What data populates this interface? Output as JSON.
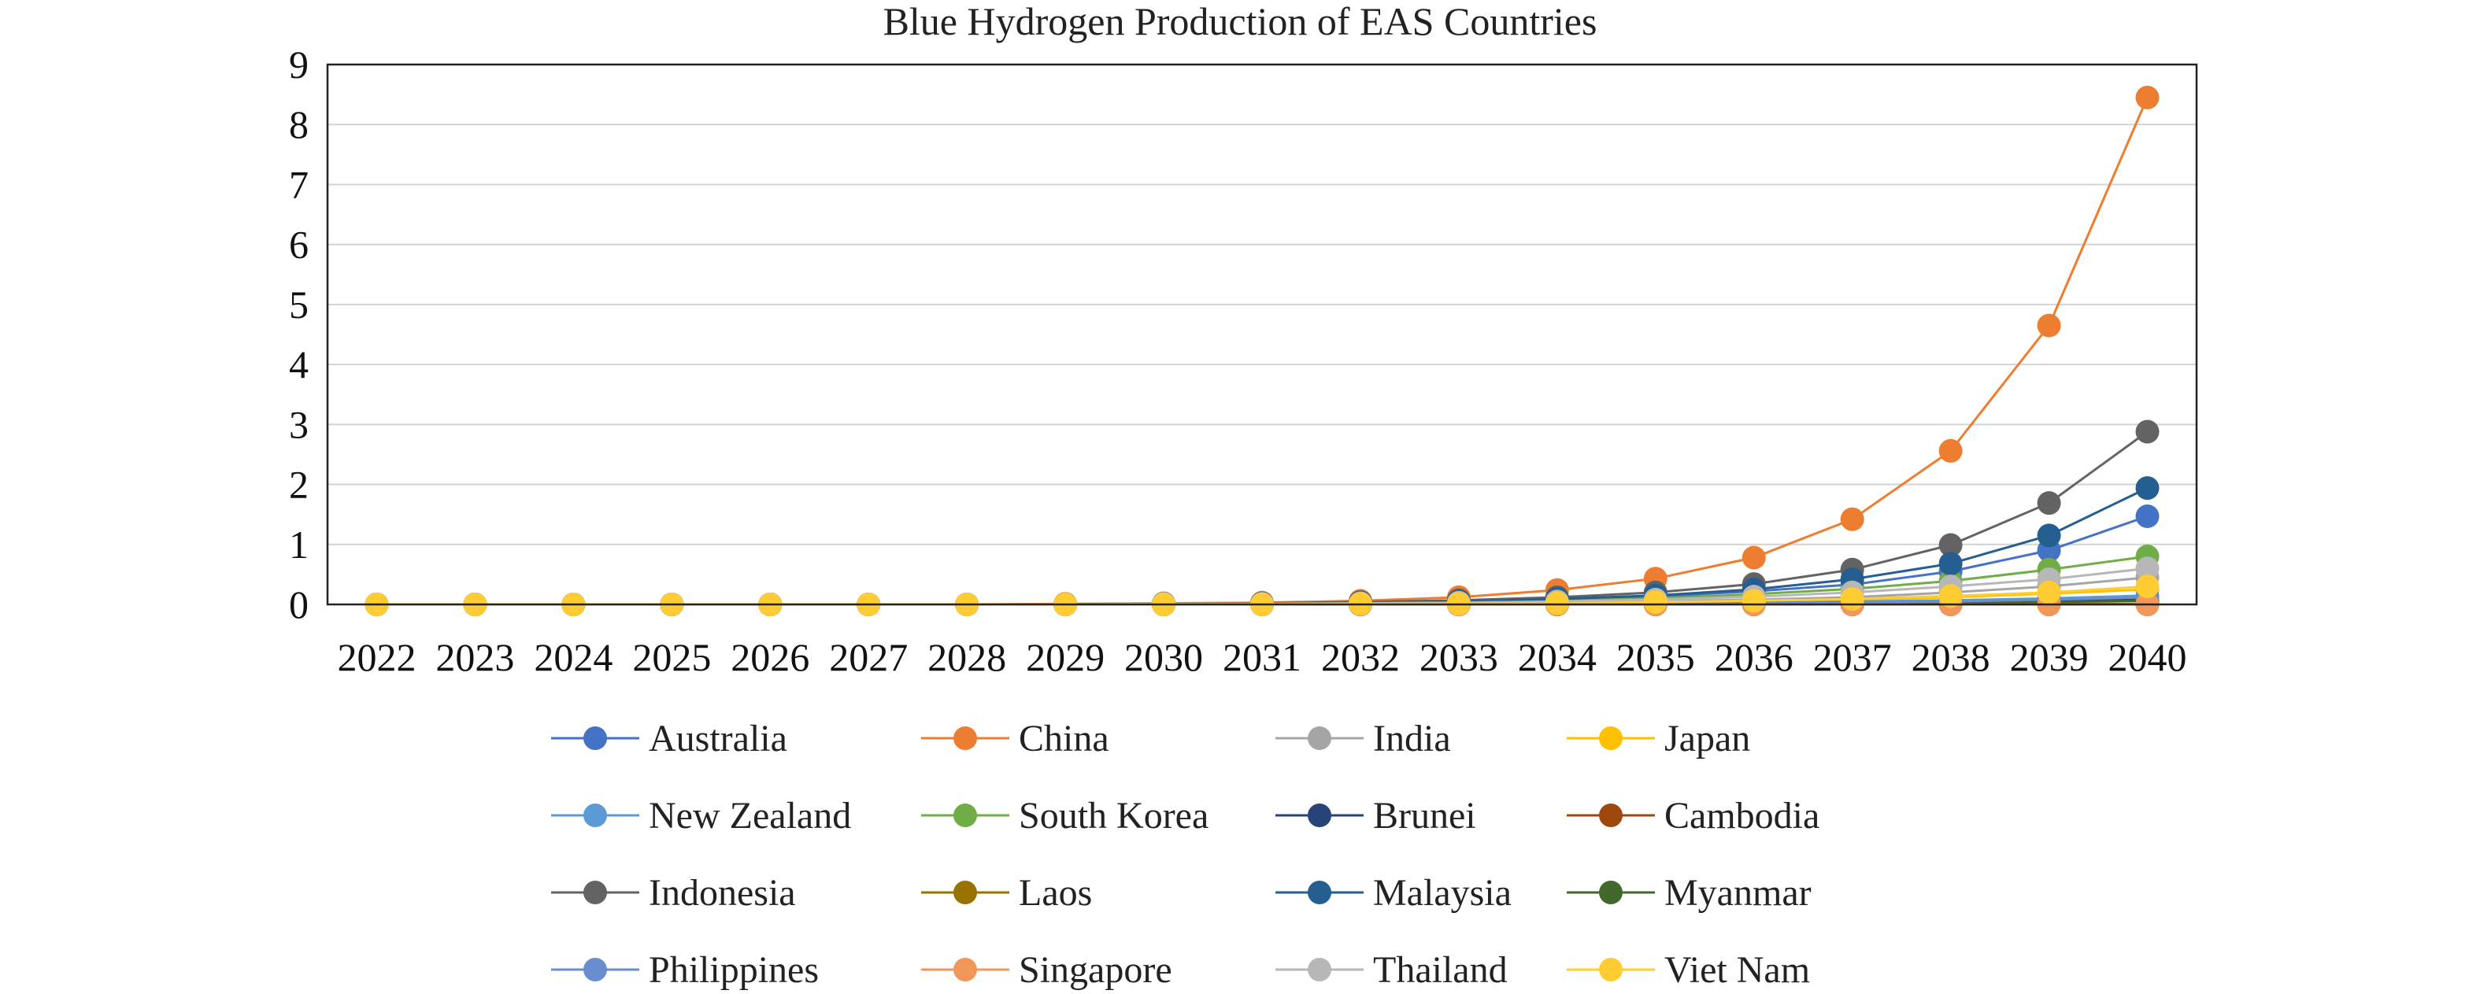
{
  "chart_data": {
    "type": "line",
    "title": "Blue Hydrogen Production of EAS Countries",
    "xlabel": "",
    "ylabel": "",
    "ylim": [
      0,
      9
    ],
    "yticks": [
      "0",
      "1",
      "2",
      "3",
      "4",
      "5",
      "6",
      "7",
      "8",
      "9"
    ],
    "grid": true,
    "legend_position": "bottom",
    "categories": [
      "2022",
      "2023",
      "2024",
      "2025",
      "2026",
      "2027",
      "2028",
      "2029",
      "2030",
      "2031",
      "2032",
      "2033",
      "2034",
      "2035",
      "2036",
      "2037",
      "2038",
      "2039",
      "2040"
    ],
    "series": [
      {
        "name": "Australia",
        "color": "#4472C4",
        "values": [
          0,
          0,
          0,
          0,
          0,
          0,
          0,
          0,
          0.01,
          0.02,
          0.03,
          0.05,
          0.08,
          0.13,
          0.22,
          0.33,
          0.55,
          0.9,
          1.47
        ]
      },
      {
        "name": "China",
        "color": "#ED7D31",
        "values": [
          0,
          0,
          0,
          0,
          0,
          0,
          0,
          0.01,
          0.02,
          0.03,
          0.06,
          0.12,
          0.24,
          0.43,
          0.78,
          1.42,
          2.56,
          4.65,
          8.45
        ]
      },
      {
        "name": "India",
        "color": "#A5A5A5",
        "values": [
          0,
          0,
          0,
          0,
          0,
          0,
          0,
          0,
          0,
          0.01,
          0.01,
          0.02,
          0.03,
          0.05,
          0.08,
          0.12,
          0.2,
          0.3,
          0.45
        ]
      },
      {
        "name": "Japan",
        "color": "#FFC000",
        "values": [
          0,
          0,
          0,
          0,
          0,
          0,
          0,
          0,
          0,
          0,
          0.01,
          0.01,
          0.02,
          0.03,
          0.05,
          0.08,
          0.12,
          0.18,
          0.25
        ]
      },
      {
        "name": "New Zealand",
        "color": "#5B9BD5",
        "values": [
          0,
          0,
          0,
          0,
          0,
          0,
          0,
          0,
          0,
          0,
          0,
          0.01,
          0.01,
          0.02,
          0.03,
          0.05,
          0.07,
          0.1,
          0.15
        ]
      },
      {
        "name": "South Korea",
        "color": "#70AD47",
        "values": [
          0,
          0,
          0,
          0,
          0,
          0,
          0,
          0,
          0.01,
          0.01,
          0.02,
          0.04,
          0.06,
          0.1,
          0.17,
          0.26,
          0.39,
          0.58,
          0.8
        ]
      },
      {
        "name": "Brunei",
        "color": "#264478",
        "values": [
          0,
          0,
          0,
          0,
          0,
          0,
          0,
          0,
          0,
          0,
          0,
          0,
          0.01,
          0.01,
          0.02,
          0.03,
          0.04,
          0.06,
          0.08
        ]
      },
      {
        "name": "Cambodia",
        "color": "#9E480E",
        "values": [
          0,
          0,
          0,
          0,
          0,
          0,
          0,
          0,
          0,
          0,
          0,
          0,
          0,
          0,
          0,
          0,
          0,
          0,
          0
        ]
      },
      {
        "name": "Indonesia",
        "color": "#636363",
        "values": [
          0,
          0,
          0,
          0,
          0,
          0,
          0,
          0,
          0.01,
          0.02,
          0.04,
          0.07,
          0.12,
          0.2,
          0.34,
          0.58,
          0.99,
          1.69,
          2.88
        ]
      },
      {
        "name": "Laos",
        "color": "#997300",
        "values": [
          0,
          0,
          0,
          0,
          0,
          0,
          0,
          0,
          0,
          0,
          0,
          0,
          0,
          0,
          0,
          0,
          0,
          0.01,
          0.01
        ]
      },
      {
        "name": "Malaysia",
        "color": "#255E91",
        "values": [
          0,
          0,
          0,
          0,
          0,
          0,
          0,
          0,
          0.01,
          0.01,
          0.03,
          0.05,
          0.09,
          0.15,
          0.25,
          0.42,
          0.68,
          1.15,
          1.94
        ]
      },
      {
        "name": "Myanmar",
        "color": "#43682B",
        "values": [
          0,
          0,
          0,
          0,
          0,
          0,
          0,
          0,
          0,
          0,
          0,
          0,
          0,
          0.01,
          0.01,
          0.02,
          0.03,
          0.04,
          0.06
        ]
      },
      {
        "name": "Philippines",
        "color": "#698ED0",
        "values": [
          0,
          0,
          0,
          0,
          0,
          0,
          0,
          0,
          0,
          0,
          0,
          0,
          0.01,
          0.01,
          0.02,
          0.03,
          0.05,
          0.08,
          0.12
        ]
      },
      {
        "name": "Singapore",
        "color": "#F1975A",
        "values": [
          0,
          0,
          0,
          0,
          0,
          0,
          0,
          0,
          0,
          0,
          0,
          0,
          0,
          0,
          0,
          0,
          0,
          0,
          0
        ]
      },
      {
        "name": "Thailand",
        "color": "#B7B7B7",
        "values": [
          0,
          0,
          0,
          0,
          0,
          0,
          0,
          0,
          0.01,
          0.01,
          0.02,
          0.03,
          0.05,
          0.08,
          0.13,
          0.2,
          0.3,
          0.42,
          0.6
        ]
      },
      {
        "name": "Viet Nam",
        "color": "#FFCD33",
        "values": [
          0,
          0,
          0,
          0,
          0,
          0,
          0,
          0,
          0,
          0,
          0.01,
          0.01,
          0.02,
          0.04,
          0.06,
          0.09,
          0.14,
          0.2,
          0.3
        ]
      }
    ]
  }
}
